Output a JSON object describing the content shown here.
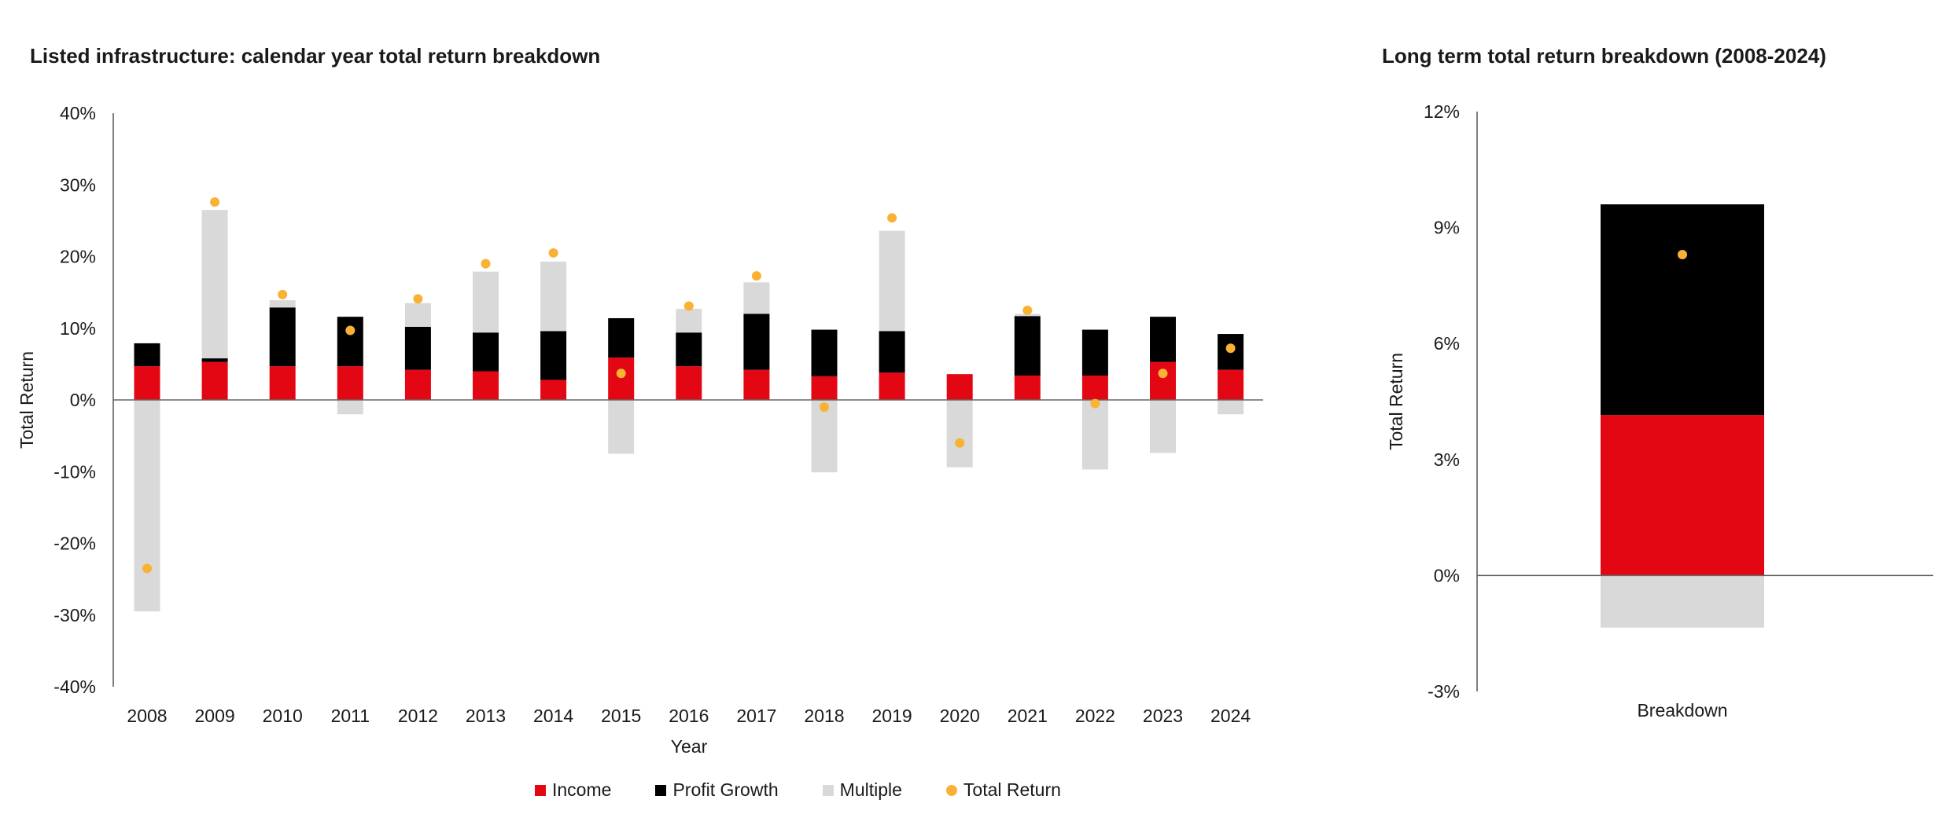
{
  "chart_data": [
    {
      "type": "bar",
      "stacked": true,
      "title": "Listed infrastructure: calendar year total return breakdown",
      "xlabel": "Year",
      "ylabel": "Total Return",
      "ylim": [
        -40,
        40
      ],
      "yticks": [
        "40%",
        "30%",
        "20%",
        "10%",
        "0%",
        "-10%",
        "-20%",
        "-30%",
        "-40%"
      ],
      "ytick_values": [
        40,
        30,
        20,
        10,
        0,
        -10,
        -20,
        -30,
        -40
      ],
      "categories": [
        "2008",
        "2009",
        "2010",
        "2011",
        "2012",
        "2013",
        "2014",
        "2015",
        "2016",
        "2017",
        "2018",
        "2019",
        "2020",
        "2021",
        "2022",
        "2023",
        "2024"
      ],
      "series": [
        {
          "name": "Income",
          "kind": "bar",
          "color": "#e30613",
          "values": [
            4.7,
            5.3,
            4.7,
            4.7,
            4.2,
            4.0,
            2.8,
            5.9,
            4.7,
            4.2,
            3.3,
            3.8,
            3.6,
            3.4,
            3.4,
            5.3,
            4.2
          ]
        },
        {
          "name": "Profit Growth",
          "kind": "bar",
          "color": "#000000",
          "values": [
            3.2,
            0.5,
            8.2,
            6.9,
            6.0,
            5.4,
            6.8,
            5.5,
            4.7,
            7.8,
            6.5,
            5.8,
            0.0,
            8.3,
            6.4,
            6.3,
            5.0
          ]
        },
        {
          "name": "Multiple",
          "kind": "bar",
          "color": "#d9d9d9",
          "values": [
            -29.5,
            20.7,
            1.0,
            -2.0,
            3.3,
            8.5,
            9.7,
            -7.5,
            3.3,
            4.4,
            -10.1,
            14.0,
            -9.4,
            0.3,
            -9.7,
            -7.4,
            -2.0
          ]
        },
        {
          "name": "Total Return",
          "kind": "point",
          "color": "#f9b233",
          "values": [
            -23.5,
            27.6,
            14.7,
            9.7,
            14.1,
            19.0,
            20.5,
            3.7,
            13.1,
            17.3,
            -1.0,
            25.4,
            -6.0,
            12.5,
            -0.5,
            3.7,
            7.2
          ]
        }
      ],
      "legend": "bottom"
    },
    {
      "type": "bar",
      "stacked": true,
      "title": "Long term total return breakdown  (2008-2024)",
      "xlabel": "",
      "ylabel": "Total Return",
      "ylim": [
        -3,
        12
      ],
      "yticks": [
        "12%",
        "9%",
        "6%",
        "3%",
        "0%",
        "-3%"
      ],
      "ytick_values": [
        12,
        9,
        6,
        3,
        0,
        -3
      ],
      "categories": [
        "Breakdown"
      ],
      "series": [
        {
          "name": "Income",
          "kind": "bar",
          "color": "#e30613",
          "values": [
            4.15
          ]
        },
        {
          "name": "Profit Growth",
          "kind": "bar",
          "color": "#000000",
          "values": [
            5.45
          ]
        },
        {
          "name": "Multiple",
          "kind": "bar",
          "color": "#d9d9d9",
          "values": [
            -1.35
          ]
        },
        {
          "name": "Total Return",
          "kind": "point",
          "color": "#f9b233",
          "values": [
            8.3
          ]
        }
      ]
    }
  ],
  "legend": {
    "items": [
      {
        "label": "Income",
        "color": "#e30613",
        "shape": "square"
      },
      {
        "label": "Profit Growth",
        "color": "#000000",
        "shape": "square"
      },
      {
        "label": "Multiple",
        "color": "#d9d9d9",
        "shape": "square"
      },
      {
        "label": "Total Return",
        "color": "#f9b233",
        "shape": "circle"
      }
    ]
  }
}
